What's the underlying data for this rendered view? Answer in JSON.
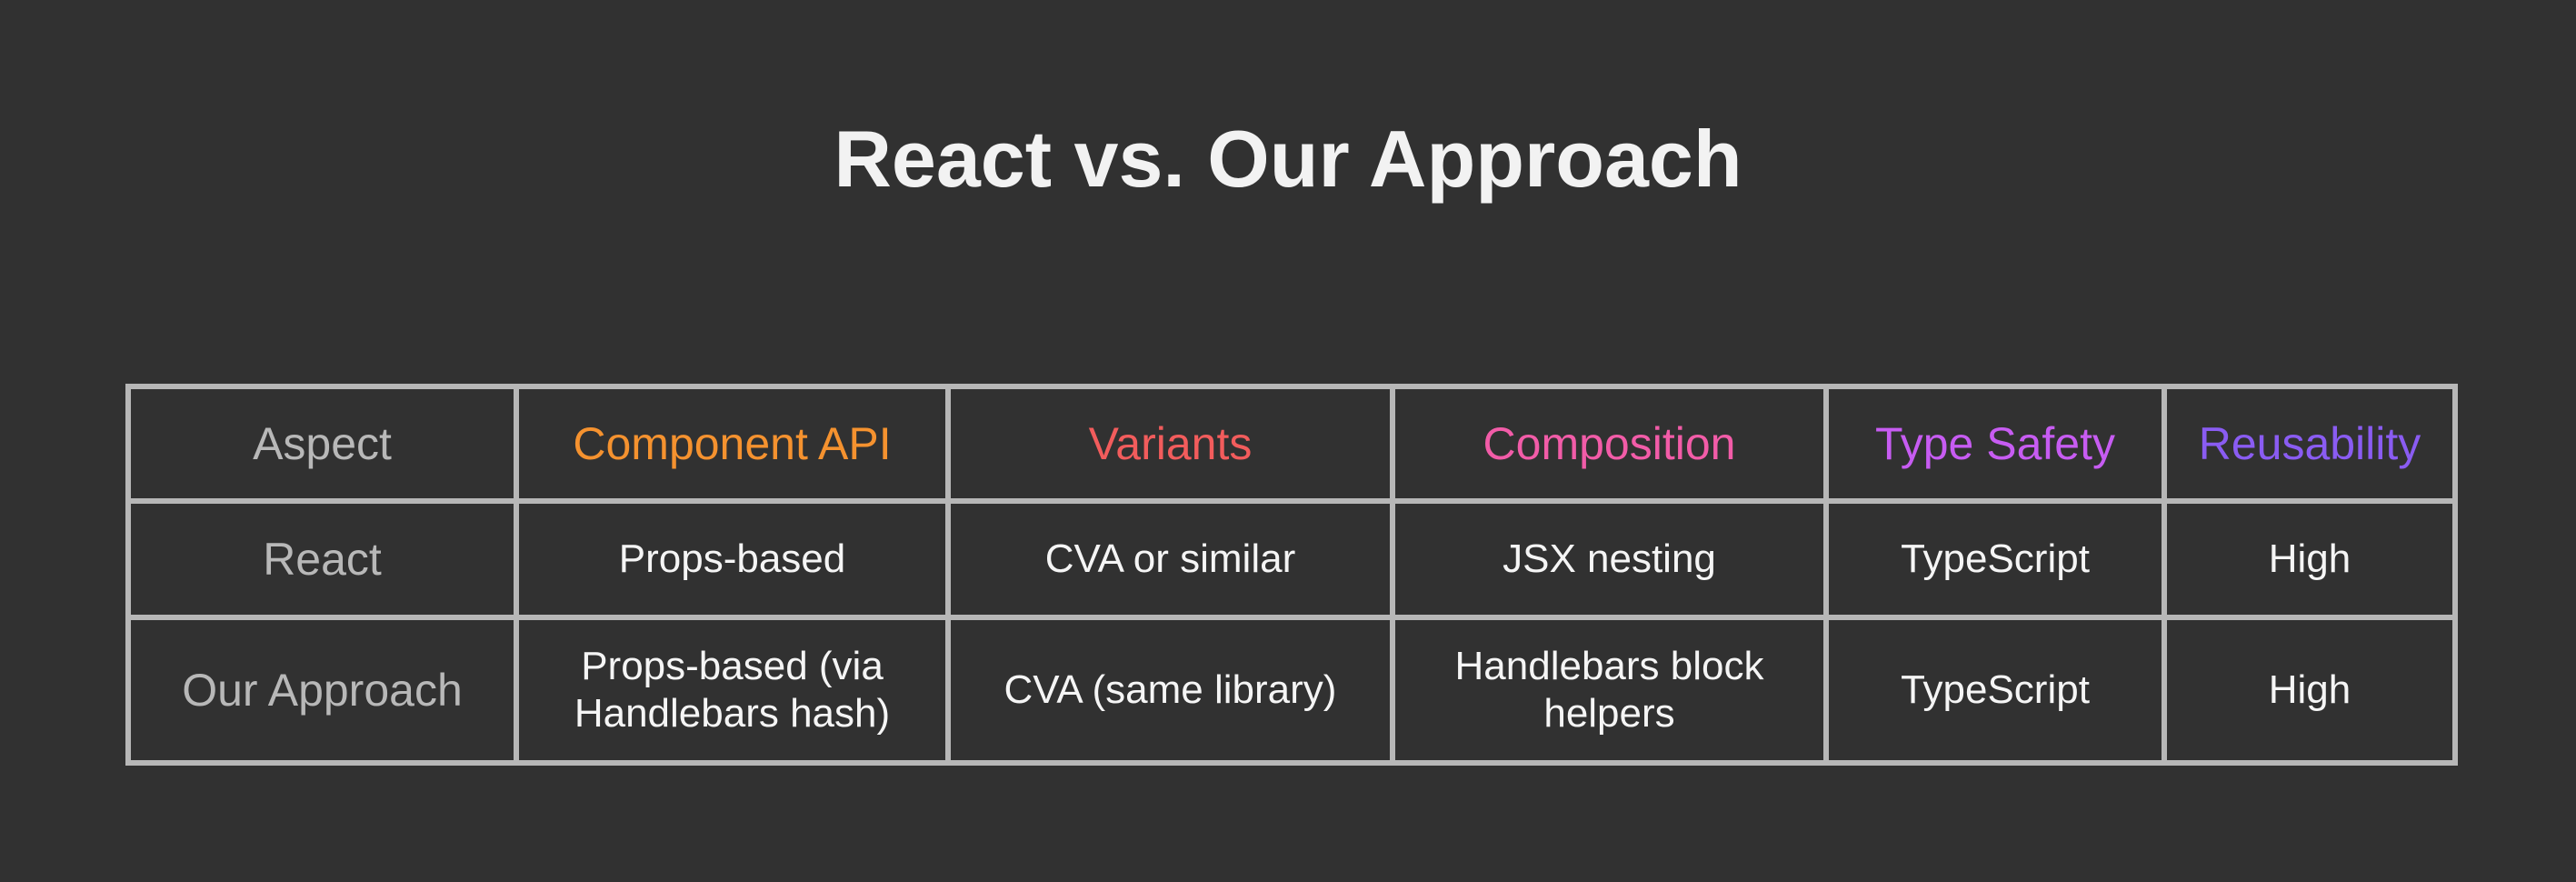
{
  "title": "React vs. Our Approach",
  "colors": {
    "background": "#313131",
    "border": "#b7b7b7",
    "aspect": "#b8b8b8",
    "component_api": "#f5922f",
    "variants": "#f25c5c",
    "composition": "#f25ca8",
    "type_safety": "#c75cf2",
    "reusability": "#8a5cf2"
  },
  "table": {
    "headers": [
      "Aspect",
      "Component API",
      "Variants",
      "Composition",
      "Type Safety",
      "Reusability"
    ],
    "rows": [
      [
        "React",
        "Props-based",
        "CVA or similar",
        "JSX nesting",
        "TypeScript",
        "High"
      ],
      [
        "Our Approach",
        "Props-based (via Handlebars hash)",
        "CVA (same library)",
        "Handlebars block helpers",
        "TypeScript",
        "High"
      ]
    ]
  }
}
